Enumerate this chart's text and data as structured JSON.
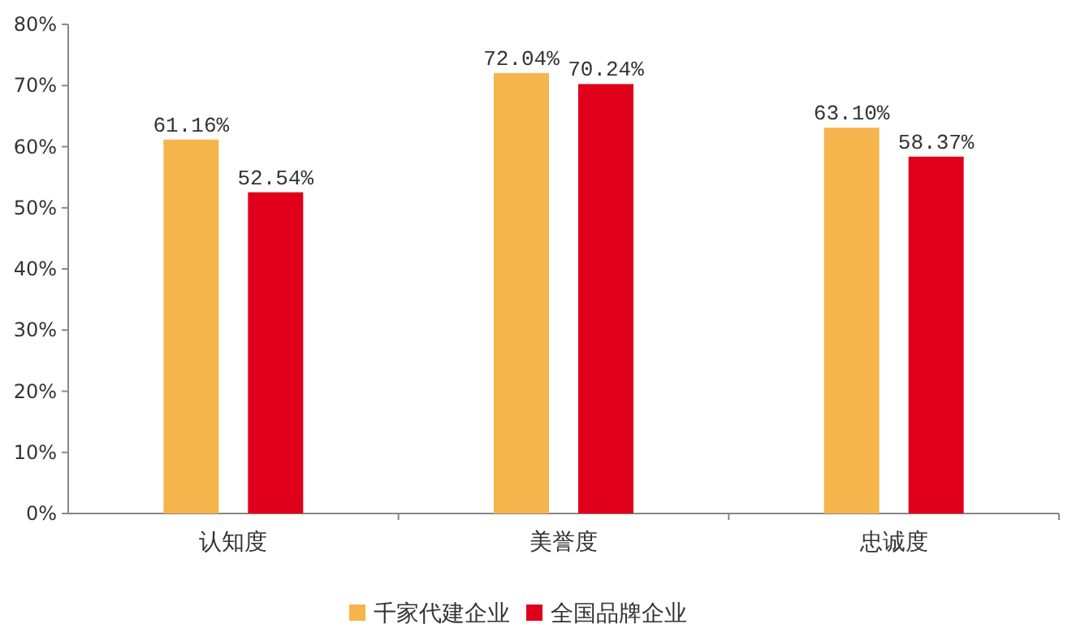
{
  "chart_data": {
    "type": "bar",
    "categories": [
      "认知度",
      "美誉度",
      "忠诚度"
    ],
    "series": [
      {
        "name": "千家代建企业",
        "color": "#f5b54c",
        "values": [
          61.16,
          72.04,
          63.1
        ],
        "value_labels": [
          "61.16%",
          "72.04%",
          "63.10%"
        ]
      },
      {
        "name": "全国品牌企业",
        "color": "#e0001b",
        "values": [
          52.54,
          70.24,
          58.37
        ],
        "value_labels": [
          "52.54%",
          "70.24%",
          "58.37%"
        ]
      }
    ],
    "ylim": [
      0,
      80
    ],
    "yticks": [
      {
        "value": 0,
        "label": "0%"
      },
      {
        "value": 10,
        "label": "10%"
      },
      {
        "value": 20,
        "label": "20%"
      },
      {
        "value": 30,
        "label": "30%"
      },
      {
        "value": 40,
        "label": "40%"
      },
      {
        "value": 50,
        "label": "50%"
      },
      {
        "value": 60,
        "label": "60%"
      },
      {
        "value": 70,
        "label": "70%"
      },
      {
        "value": 80,
        "label": "80%"
      }
    ],
    "grid": false,
    "legend": "bottom"
  }
}
